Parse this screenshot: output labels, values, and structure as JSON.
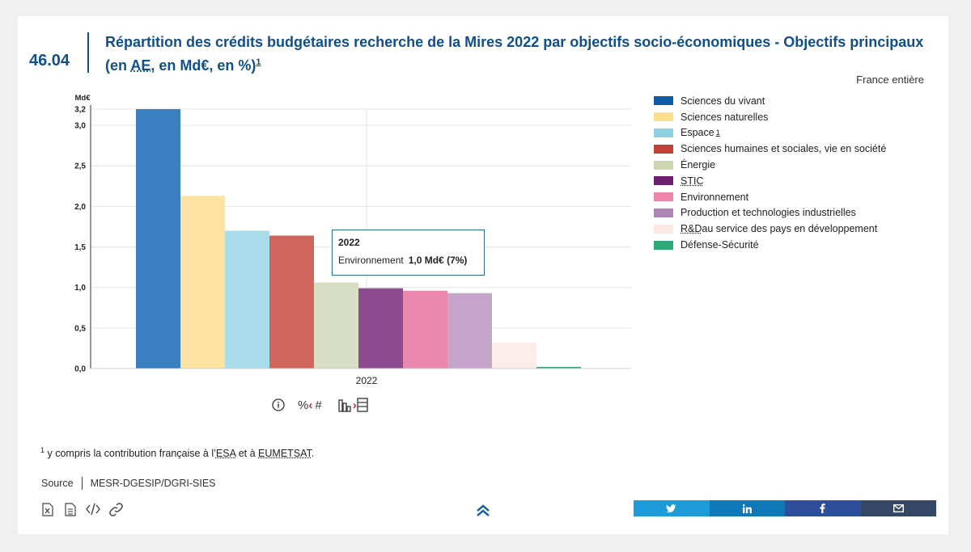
{
  "header": {
    "figure_number": "46.04",
    "title_part1": "Répartition des crédits budgétaires recherche de la Mires 2022 par objectifs socio-économiques - Objectifs principaux (en ",
    "title_abbr": "AE",
    "title_part2": ", en Md€, en %)",
    "title_note": "1",
    "scope": "France entière"
  },
  "chart_data": {
    "type": "bar",
    "categories": [
      "2022"
    ],
    "ylabel": "Md€",
    "ylim": [
      0,
      3.2
    ],
    "yticks": [
      "0,0",
      "0,5",
      "1,0",
      "1,5",
      "2,0",
      "2,5",
      "3,0",
      "3,2"
    ],
    "ytick_values": [
      0,
      0.5,
      1.0,
      1.5,
      2.0,
      2.5,
      3.0,
      3.2
    ],
    "grid": true,
    "legend_position": "right",
    "series": [
      {
        "name": "Sciences du vivant",
        "values": [
          3.2
        ],
        "color": "#3a7fc1"
      },
      {
        "name": "Sciences naturelles",
        "values": [
          2.13
        ],
        "color": "#fde3a1"
      },
      {
        "name": "Espace",
        "values": [
          1.7
        ],
        "color": "#a8dcea"
      },
      {
        "name": "Sciences humaines et sociales, vie en société",
        "values": [
          1.64
        ],
        "color": "#d0655c"
      },
      {
        "name": "Énergie",
        "values": [
          1.06
        ],
        "color": "#d8dec4"
      },
      {
        "name": "STIC",
        "values": [
          0.99
        ],
        "color": "#8d4a8e"
      },
      {
        "name": "Environnement",
        "values": [
          0.96
        ],
        "color": "#eb88ad"
      },
      {
        "name": "Production et technologies industrielles",
        "values": [
          0.93
        ],
        "color": "#c6a4ca"
      },
      {
        "name": "R&D au service des pays en développement",
        "values": [
          0.32
        ],
        "color": "#fbeeea"
      },
      {
        "name": "Défense-Sécurité",
        "values": [
          0.02
        ],
        "color": "#3aa57a"
      }
    ]
  },
  "legend": {
    "items": [
      {
        "label": "Sciences du vivant",
        "color": "#0f5da6"
      },
      {
        "label": "Sciences naturelles",
        "color": "#fde08e"
      },
      {
        "label": "Espace",
        "color": "#8fd1e3",
        "note": "1"
      },
      {
        "label": "Sciences humaines et sociales, vie en société",
        "color": "#c2403a"
      },
      {
        "label": "Énergie",
        "color": "#cdd5b1"
      },
      {
        "label": "STIC",
        "color": "#6b1f6e"
      },
      {
        "label": "Environnement",
        "color": "#ec85ac"
      },
      {
        "label": "Production et technologies industrielles",
        "color": "#ad86b3"
      },
      {
        "label_abbr": "R&D",
        "label_rest": " au service des pays en développement",
        "color": "#fde9e4"
      },
      {
        "label": "Défense-Sécurité",
        "color": "#2fa878"
      }
    ]
  },
  "tooltip": {
    "title": "2022",
    "series": "Environnement",
    "value": "1,0 Md€ (7%)"
  },
  "controls": {
    "info_icon": "info-icon",
    "percent_label": "%",
    "hash_label": "#",
    "arrow_left": "‹",
    "arrow_right": "›"
  },
  "footnote": {
    "marker": "1",
    "text_before": " y compris la contribution française à l’",
    "abbr1": "ESA",
    "text_middle": " et à ",
    "abbr2": "EUMETSAT",
    "text_after": "."
  },
  "source": {
    "label": "Source",
    "value": "MESR-DGESIP/DGRI-SIES"
  },
  "share": {
    "twitter": {
      "icon": "twitter-icon",
      "color": "#1d9bd9"
    },
    "linkedin": {
      "icon": "linkedin-icon",
      "color": "#0f79b8"
    },
    "facebook": {
      "icon": "facebook-icon",
      "color": "#2d4e9a"
    },
    "email": {
      "icon": "email-icon",
      "color": "#344866"
    }
  }
}
